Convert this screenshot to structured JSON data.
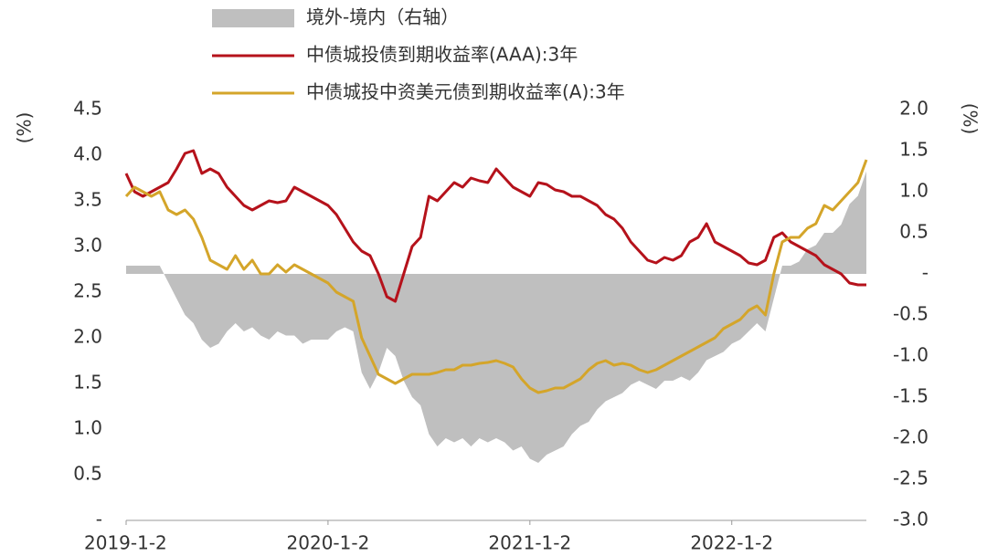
{
  "chart_data": {
    "type": "line",
    "categories": [
      "2019-1-2",
      null,
      null,
      null,
      null,
      null,
      null,
      null,
      null,
      null,
      null,
      null,
      null,
      null,
      null,
      null,
      null,
      null,
      null,
      null,
      null,
      null,
      null,
      null,
      "2020-1-2",
      null,
      null,
      null,
      null,
      null,
      null,
      null,
      null,
      null,
      null,
      null,
      null,
      null,
      null,
      null,
      null,
      null,
      null,
      null,
      null,
      null,
      null,
      null,
      "2021-1-2",
      null,
      null,
      null,
      null,
      null,
      null,
      null,
      null,
      null,
      null,
      null,
      null,
      null,
      null,
      null,
      null,
      null,
      null,
      null,
      null,
      null,
      null,
      null,
      "2022-1-2",
      null,
      null,
      null,
      null,
      null,
      null,
      null,
      null,
      null,
      null,
      null,
      null,
      null,
      null,
      null,
      null
    ],
    "ylabel": "(%)",
    "y2label": "(%)",
    "ylim": [
      0,
      4.5
    ],
    "yticks": [
      {
        "value": 0,
        "label": "-"
      },
      0.5,
      {
        "value": 1,
        "label": "1.0"
      },
      1.5,
      {
        "value": 2,
        "label": "2.0"
      },
      2.5,
      {
        "value": 3,
        "label": "3.0"
      },
      3.5,
      {
        "value": 4,
        "label": "4.0"
      },
      4.5
    ],
    "y2lim": [
      -3,
      2
    ],
    "y2ticks": [
      {
        "value": -3,
        "label": "-3.0"
      },
      -2.5,
      {
        "value": -2,
        "label": "-2.0"
      },
      -1.5,
      {
        "value": -1,
        "label": "-1.0"
      },
      -0.5,
      {
        "value": 0,
        "label": "-"
      },
      0.5,
      {
        "value": 1,
        "label": "1.0"
      },
      1.5,
      {
        "value": 2,
        "label": "2.0"
      }
    ],
    "series": [
      {
        "name": "境外-境内（右轴）",
        "type": "area",
        "axis": "y2",
        "color": "#bfbfbf",
        "values": [
          0.1,
          0.1,
          0.1,
          0.1,
          0.1,
          -0.1,
          -0.3,
          -0.5,
          -0.6,
          -0.8,
          -0.9,
          -0.85,
          -0.7,
          -0.6,
          -0.7,
          -0.65,
          -0.75,
          -0.8,
          -0.7,
          -0.75,
          -0.75,
          -0.85,
          -0.8,
          -0.8,
          -0.8,
          -0.7,
          -0.65,
          -0.7,
          -1.2,
          -1.4,
          -1.2,
          -0.9,
          -1.0,
          -1.3,
          -1.5,
          -1.6,
          -1.95,
          -2.1,
          -2.0,
          -2.05,
          -2.0,
          -2.1,
          -2.0,
          -2.05,
          -2.0,
          -2.05,
          -2.15,
          -2.1,
          -2.25,
          -2.3,
          -2.2,
          -2.15,
          -2.1,
          -1.95,
          -1.85,
          -1.8,
          -1.65,
          -1.55,
          -1.5,
          -1.45,
          -1.35,
          -1.3,
          -1.35,
          -1.4,
          -1.3,
          -1.3,
          -1.25,
          -1.3,
          -1.2,
          -1.05,
          -1.0,
          -0.95,
          -0.85,
          -0.8,
          -0.7,
          -0.6,
          -0.7,
          -0.3,
          0.1,
          0.1,
          0.15,
          0.3,
          0.35,
          0.5,
          0.5,
          0.6,
          0.85,
          0.95,
          1.25
        ]
      },
      {
        "name": "中债城投债到期收益率(AAA):3年",
        "type": "line",
        "color": "#b5121b",
        "values": [
          3.8,
          3.6,
          3.55,
          3.6,
          3.65,
          3.7,
          3.85,
          4.02,
          4.05,
          3.8,
          3.85,
          3.8,
          3.65,
          3.55,
          3.45,
          3.4,
          3.45,
          3.5,
          3.48,
          3.5,
          3.65,
          3.6,
          3.55,
          3.5,
          3.45,
          3.35,
          3.2,
          3.05,
          2.95,
          2.9,
          2.7,
          2.45,
          2.4,
          2.7,
          3.0,
          3.1,
          3.55,
          3.5,
          3.6,
          3.7,
          3.65,
          3.75,
          3.72,
          3.7,
          3.85,
          3.75,
          3.65,
          3.6,
          3.55,
          3.7,
          3.68,
          3.62,
          3.6,
          3.55,
          3.55,
          3.5,
          3.45,
          3.35,
          3.3,
          3.2,
          3.05,
          2.95,
          2.85,
          2.82,
          2.88,
          2.85,
          2.9,
          3.05,
          3.1,
          3.25,
          3.05,
          3.0,
          2.95,
          2.9,
          2.82,
          2.8,
          2.85,
          3.1,
          3.15,
          3.05,
          3.0,
          2.95,
          2.9,
          2.8,
          2.75,
          2.7,
          2.6,
          2.58,
          2.58
        ]
      },
      {
        "name": "中债城投中资美元债到期收益率(A):3年",
        "type": "line",
        "color": "#d4a52a",
        "values": [
          3.55,
          3.65,
          3.6,
          3.55,
          3.6,
          3.4,
          3.35,
          3.4,
          3.3,
          3.1,
          2.85,
          2.8,
          2.75,
          2.9,
          2.75,
          2.85,
          2.7,
          2.7,
          2.8,
          2.72,
          2.8,
          2.75,
          2.7,
          2.65,
          2.6,
          2.5,
          2.45,
          2.4,
          2.0,
          1.8,
          1.6,
          1.55,
          1.5,
          1.55,
          1.6,
          1.6,
          1.6,
          1.62,
          1.65,
          1.65,
          1.7,
          1.7,
          1.72,
          1.73,
          1.75,
          1.72,
          1.68,
          1.55,
          1.45,
          1.4,
          1.42,
          1.45,
          1.45,
          1.5,
          1.55,
          1.65,
          1.72,
          1.75,
          1.7,
          1.72,
          1.7,
          1.65,
          1.62,
          1.65,
          1.7,
          1.75,
          1.8,
          1.85,
          1.9,
          1.95,
          2.0,
          2.1,
          2.15,
          2.2,
          2.3,
          2.35,
          2.25,
          2.7,
          3.05,
          3.1,
          3.1,
          3.2,
          3.25,
          3.45,
          3.4,
          3.5,
          3.6,
          3.7,
          3.95
        ]
      }
    ]
  }
}
